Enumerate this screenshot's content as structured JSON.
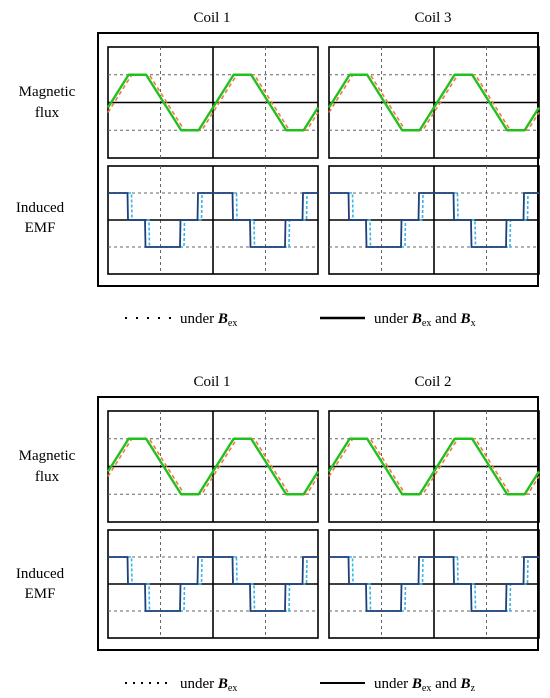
{
  "colors": {
    "flux_solid": "#22c01e",
    "flux_dashed": "#f07a3c",
    "emf_solid": "#1f3f78",
    "emf_dashed": "#34b6ea",
    "grid": "#666666",
    "frame": "#000000"
  },
  "row_labels": {
    "flux_line1": "Magnetic",
    "flux_line2": "flux",
    "emf_line1": "Induced",
    "emf_line2": "EMF"
  },
  "figures": [
    {
      "col_titles": [
        "Coil 1",
        "Coil 3"
      ],
      "legend": {
        "dotted_prefix": "under ",
        "dotted_field": "B",
        "dotted_sub": "ex",
        "solid_prefix": "under ",
        "solid_field1": "B",
        "solid_sub1": "ex",
        "solid_and": " and ",
        "solid_field2": "B",
        "solid_sub2": "x"
      }
    },
    {
      "col_titles": [
        "Coil 1",
        "Coil 2"
      ],
      "legend": {
        "dotted_prefix": "under ",
        "dotted_field": "B",
        "dotted_sub": "ex",
        "solid_prefix": "under ",
        "solid_field1": "B",
        "solid_sub1": "ex",
        "solid_and": " and ",
        "solid_field2": "B",
        "solid_sub2": "z"
      }
    }
  ]
}
